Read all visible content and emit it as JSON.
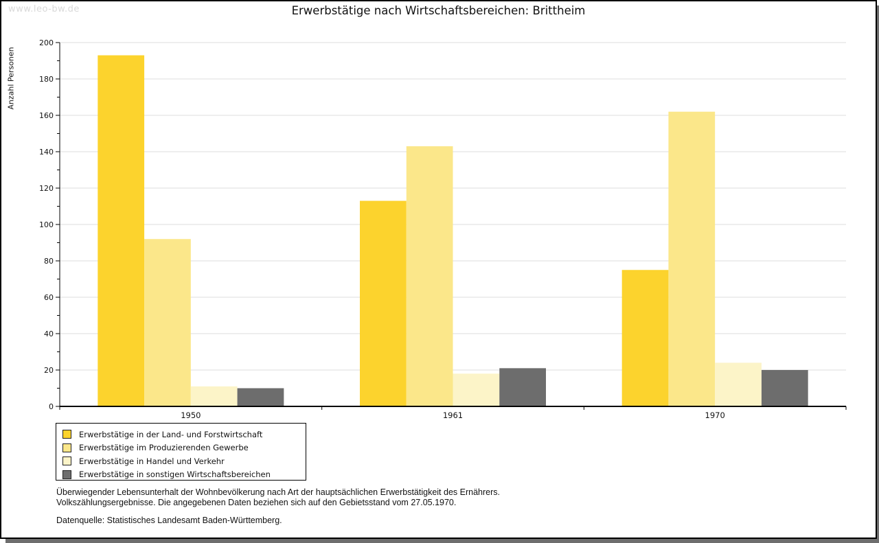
{
  "watermark": "www.leo-bw.de",
  "title": "Erwerbstätige nach Wirtschaftsbereichen: Brittheim",
  "chart_data": {
    "type": "bar",
    "title": "Erwerbstätige nach Wirtschaftsbereichen: Brittheim",
    "categories": [
      "1950",
      "1961",
      "1970"
    ],
    "series": [
      {
        "name": "Erwerbstätige in der Land- und Forstwirtschaft",
        "color": "#fcd32d",
        "values": [
          193,
          113,
          75
        ]
      },
      {
        "name": "Erwerbstätige im Produzierenden Gewerbe",
        "color": "#fbe78a",
        "values": [
          92,
          143,
          162
        ]
      },
      {
        "name": "Erwerbstätige in Handel und Verkehr",
        "color": "#fcf4c8",
        "values": [
          11,
          18,
          24
        ]
      },
      {
        "name": "Erwerbstätige in sonstigen Wirtschaftsbereichen",
        "color": "#6d6d6d",
        "values": [
          10,
          21,
          20
        ]
      }
    ],
    "xlabel": "",
    "ylabel": "Anzahl Personen",
    "ylim": [
      0,
      200
    ],
    "ytick_step": 20,
    "grid": true,
    "gridline_color": "#dcdcdc",
    "axis_color": "#000000",
    "legend_position": "bottom-left"
  },
  "footnote": {
    "line1": "Überwiegender Lebensunterhalt der Wohnbevölkerung nach Art der hauptsächlichen Erwerbstätigkeit des Ernährers.",
    "line2": "Volkszählungsergebnisse. Die angegebenen Daten beziehen sich auf den Gebietsstand vom 27.05.1970.",
    "source": "Datenquelle: Statistisches Landesamt Baden-Württemberg."
  }
}
